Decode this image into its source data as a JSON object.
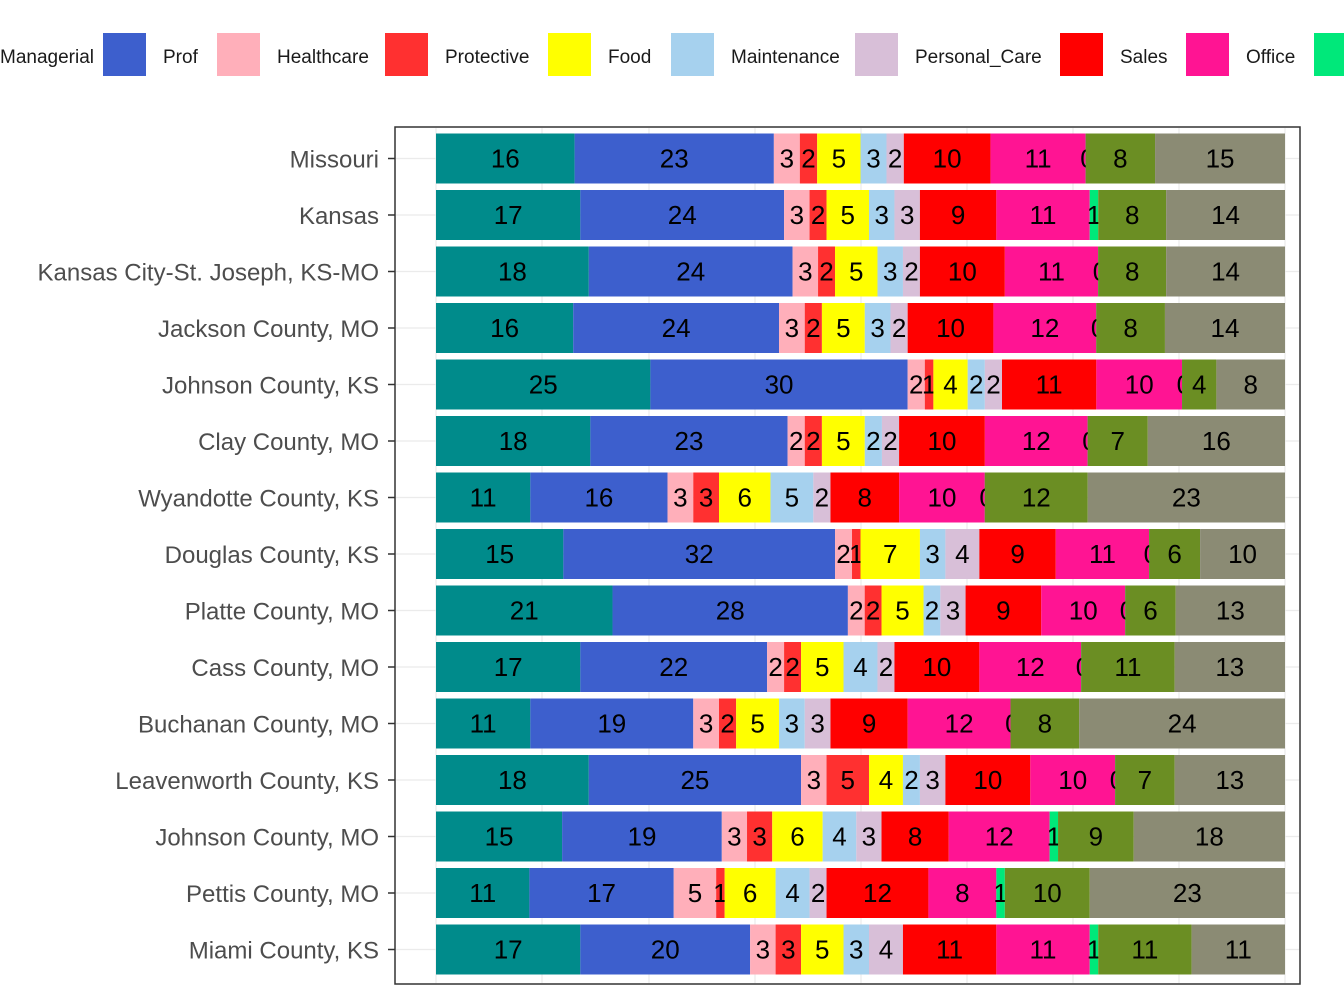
{
  "chart_data": {
    "type": "bar",
    "orientation": "horizontal",
    "stacked": true,
    "normalized_to": 100,
    "legend_position": "top",
    "grid": true,
    "title": "",
    "xlabel": "",
    "ylabel": "",
    "categories": [
      "Missouri",
      "Kansas",
      "Kansas City-St. Joseph, KS-MO",
      "Jackson County, MO",
      "Johnson County, KS",
      "Clay County, MO",
      "Wyandotte County, KS",
      "Douglas County, KS",
      "Platte County, MO",
      "Cass County, MO",
      "Buchanan County, MO",
      "Leavenworth County, KS",
      "Johnson County, MO",
      "Pettis County, MO",
      "Miami County, KS"
    ],
    "series": [
      {
        "name": "Managerial",
        "color": "#008B8B",
        "values": [
          16,
          17,
          18,
          16,
          25,
          18,
          11,
          15,
          21,
          17,
          11,
          18,
          15,
          11,
          17
        ]
      },
      {
        "name": "Prof",
        "color": "#3D5FCD",
        "values": [
          23,
          24,
          24,
          24,
          30,
          23,
          16,
          32,
          28,
          22,
          19,
          25,
          19,
          17,
          20
        ]
      },
      {
        "name": "Healthcare",
        "color": "#FFAFBA",
        "values": [
          3,
          3,
          3,
          3,
          2,
          2,
          3,
          2,
          2,
          2,
          3,
          3,
          3,
          5,
          3
        ]
      },
      {
        "name": "Protective",
        "color": "#FF3030",
        "values": [
          2,
          2,
          2,
          2,
          1,
          2,
          3,
          1,
          2,
          2,
          2,
          5,
          3,
          1,
          3
        ]
      },
      {
        "name": "Food",
        "color": "#FFFF00",
        "values": [
          5,
          5,
          5,
          5,
          4,
          5,
          6,
          7,
          5,
          5,
          5,
          4,
          6,
          6,
          5
        ]
      },
      {
        "name": "Maintenance",
        "color": "#A6D1EE",
        "values": [
          3,
          3,
          3,
          3,
          2,
          2,
          5,
          3,
          2,
          4,
          3,
          2,
          4,
          4,
          3
        ]
      },
      {
        "name": "Personal_Care",
        "color": "#D8BFD8",
        "values": [
          2,
          3,
          2,
          2,
          2,
          2,
          2,
          4,
          3,
          2,
          3,
          3,
          3,
          2,
          4
        ]
      },
      {
        "name": "Sales",
        "color": "#FF0000",
        "values": [
          10,
          9,
          10,
          10,
          11,
          10,
          8,
          9,
          9,
          10,
          9,
          10,
          8,
          12,
          11
        ]
      },
      {
        "name": "Office",
        "color": "#FF1493",
        "values": [
          11,
          11,
          11,
          12,
          10,
          12,
          10,
          11,
          10,
          12,
          12,
          10,
          12,
          8,
          11
        ]
      },
      {
        "name": "",
        "color": "#00E87A",
        "values": [
          0,
          1,
          0,
          0,
          0,
          0,
          0,
          0,
          0,
          0,
          0,
          0,
          1,
          1,
          1
        ]
      },
      {
        "name": "",
        "color": "#6B8E23",
        "values": [
          8,
          8,
          8,
          8,
          4,
          7,
          12,
          6,
          6,
          11,
          8,
          7,
          9,
          10,
          11
        ]
      },
      {
        "name": "",
        "color": "#8B8B74",
        "values": [
          15,
          14,
          14,
          14,
          8,
          16,
          23,
          10,
          13,
          13,
          24,
          13,
          18,
          23,
          11
        ]
      }
    ]
  }
}
